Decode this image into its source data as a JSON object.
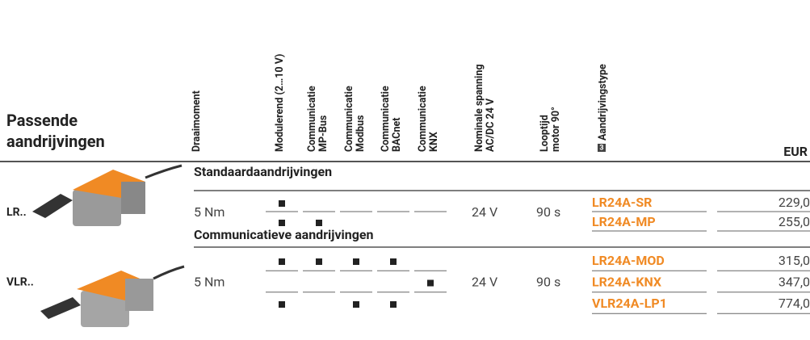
{
  "header": {
    "title": [
      "Passende",
      "aandrijvingen"
    ],
    "columns": [
      {
        "lines": [
          "Draaimoment"
        ]
      },
      {
        "lines": [
          "Modulerend (2…10 V)"
        ]
      },
      {
        "lines": [
          "Communicatie",
          "MP-Bus"
        ]
      },
      {
        "lines": [
          "Communicatie",
          "Modbus"
        ]
      },
      {
        "lines": [
          "Communicatie",
          "BACnet"
        ]
      },
      {
        "lines": [
          "Communicatie",
          "KNX"
        ]
      },
      {
        "lines": [
          "Nominale spanning",
          "AC/DC 24 V"
        ]
      },
      {
        "lines": [
          "Looptijd",
          "motor 90°"
        ]
      },
      {
        "badge": "3",
        "lines": [
          "Aandrijvingstype"
        ]
      }
    ],
    "currency": "EUR"
  },
  "sections": [
    {
      "title": "Standaardaandrijvingen",
      "label": "LR..",
      "torque": "5 Nm",
      "voltage": "24 V",
      "runtime": "90 s",
      "rows": [
        {
          "features": [
            true,
            false,
            false,
            false,
            false
          ],
          "type": "LR24A-SR",
          "price": "229,0"
        },
        {
          "features": [
            true,
            true,
            false,
            false,
            false
          ],
          "type": "LR24A-MP",
          "price": "255,0"
        }
      ]
    },
    {
      "title": "Communicatieve aandrijvingen",
      "label": "VLR..",
      "torque": "5 Nm",
      "voltage": "24 V",
      "runtime": "90 s",
      "rows": [
        {
          "features": [
            true,
            true,
            true,
            true,
            false
          ],
          "type": "LR24A-MOD",
          "price": "315,0"
        },
        {
          "features": [
            false,
            false,
            false,
            false,
            true
          ],
          "type": "LR24A-KNX",
          "price": "347,0"
        },
        {
          "features": [
            true,
            false,
            true,
            true,
            false
          ],
          "type": "VLR24A-LP1",
          "price": "774,0"
        }
      ]
    }
  ]
}
